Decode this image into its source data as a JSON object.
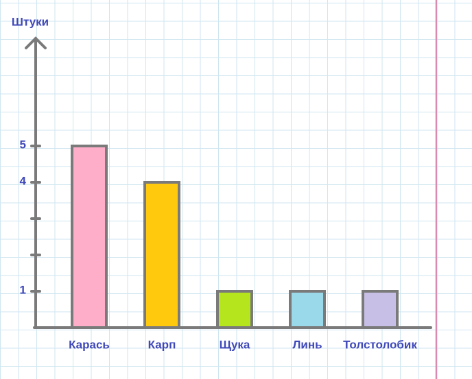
{
  "chart_data": {
    "type": "bar",
    "y_label": "Штуки",
    "categories": [
      "Карась",
      "Карп",
      "Щука",
      "Линь",
      "Толстолобик"
    ],
    "values": [
      5,
      4,
      1,
      1,
      1
    ],
    "colors": [
      "#ffaec9",
      "#ffc90e",
      "#b5e61d",
      "#99d9ea",
      "#c8bfe7"
    ],
    "ylim": [
      0,
      7.9
    ],
    "yticks": [
      1,
      4,
      5
    ],
    "minor_yticks": [
      2,
      3
    ]
  }
}
